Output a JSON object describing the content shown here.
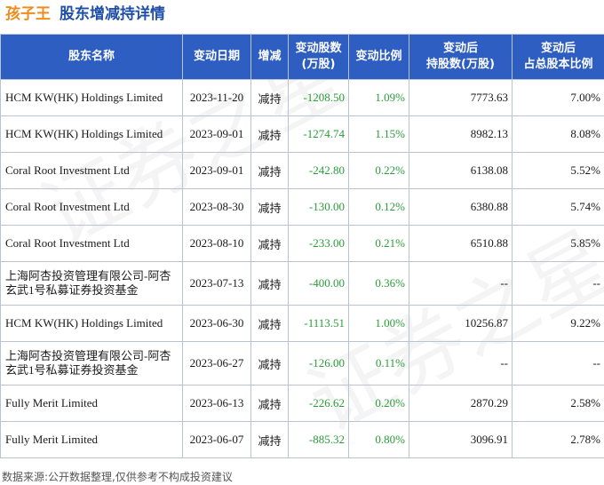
{
  "header": {
    "company": "孩子王",
    "subtitle": "股东增减持详情"
  },
  "watermark": {
    "text_1": "证券之星",
    "text_2": "证券之星"
  },
  "table": {
    "columns": {
      "col0": "股东名称",
      "col1": "变动日期",
      "col2": "增减",
      "col3_line1": "变动股数",
      "col3_line2": "(万股)",
      "col4": "变动比例",
      "col5_line1": "变动后",
      "col5_line2": "持股数(万股)",
      "col6_line1": "变动后",
      "col6_line2": "占总股本比例"
    },
    "rows": [
      {
        "name": "HCM KW(HK) Holdings Limited",
        "date": "2023-11-20",
        "dir": "减持",
        "shares": "-1208.50",
        "ratio": "1.09%",
        "after": "7773.63",
        "pct": "7.00%"
      },
      {
        "name": "HCM KW(HK) Holdings Limited",
        "date": "2023-09-01",
        "dir": "减持",
        "shares": "-1274.74",
        "ratio": "1.15%",
        "after": "8982.13",
        "pct": "8.08%"
      },
      {
        "name": "Coral Root Investment Ltd",
        "date": "2023-09-01",
        "dir": "减持",
        "shares": "-242.80",
        "ratio": "0.22%",
        "after": "6138.08",
        "pct": "5.52%"
      },
      {
        "name": "Coral Root Investment Ltd",
        "date": "2023-08-30",
        "dir": "减持",
        "shares": "-130.00",
        "ratio": "0.12%",
        "after": "6380.88",
        "pct": "5.74%"
      },
      {
        "name": "Coral Root Investment Ltd",
        "date": "2023-08-10",
        "dir": "减持",
        "shares": "-233.00",
        "ratio": "0.21%",
        "after": "6510.88",
        "pct": "5.85%"
      },
      {
        "name": "上海阿杏投资管理有限公司-阿杏玄武1号私募证券投资基金",
        "date": "2023-07-13",
        "dir": "减持",
        "shares": "-400.00",
        "ratio": "0.36%",
        "after": "--",
        "pct": "--"
      },
      {
        "name": "HCM KW(HK) Holdings Limited",
        "date": "2023-06-30",
        "dir": "减持",
        "shares": "-1113.51",
        "ratio": "1.00%",
        "after": "10256.87",
        "pct": "9.22%"
      },
      {
        "name": "上海阿杏投资管理有限公司-阿杏玄武1号私募证券投资基金",
        "date": "2023-06-27",
        "dir": "减持",
        "shares": "-126.00",
        "ratio": "0.11%",
        "after": "--",
        "pct": "--"
      },
      {
        "name": "Fully Merit Limited",
        "date": "2023-06-13",
        "dir": "减持",
        "shares": "-226.62",
        "ratio": "0.20%",
        "after": "2870.29",
        "pct": "2.58%"
      },
      {
        "name": "Fully Merit Limited",
        "date": "2023-06-07",
        "dir": "减持",
        "shares": "-885.32",
        "ratio": "0.80%",
        "after": "3096.91",
        "pct": "2.78%"
      }
    ]
  },
  "footer": {
    "source": "数据来源:公开数据整理,仅供参考不构成投资建议"
  }
}
